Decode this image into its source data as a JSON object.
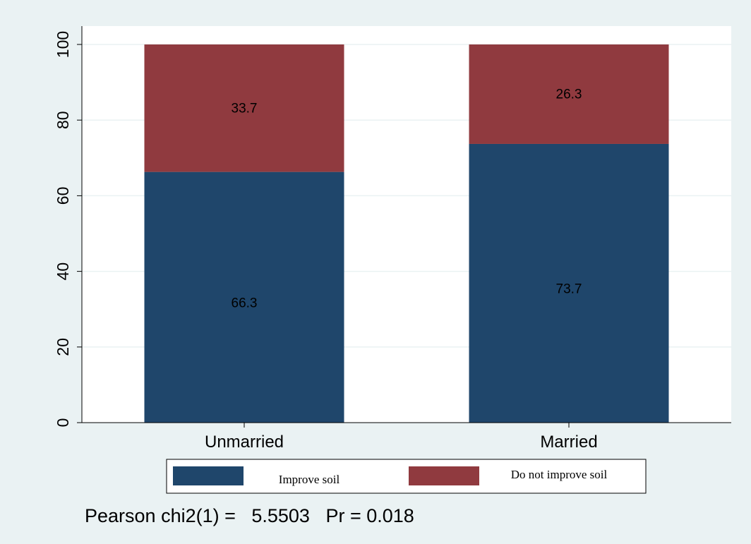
{
  "chart_data": {
    "type": "bar",
    "stacked": true,
    "categories": [
      "Unmarried",
      "Married"
    ],
    "series": [
      {
        "name": "Improve soil",
        "values": [
          66.3,
          73.7
        ],
        "color": "#1f466b"
      },
      {
        "name": "Do not improve soil",
        "values": [
          33.7,
          26.3
        ],
        "color": "#903a3f"
      }
    ],
    "data_labels": [
      [
        "66.3",
        "73.7"
      ],
      [
        "33.7",
        "26.3"
      ]
    ],
    "ylim": [
      0,
      100
    ],
    "yticks": [
      0,
      20,
      40,
      60,
      80,
      100
    ],
    "grid": true,
    "legend_position": "bottom",
    "note": "Pearson chi2(1) =   5.5503   Pr = 0.018",
    "colors": {
      "outer_background": "#eaf2f3",
      "plot_background": "#ffffff",
      "gridline": "#eaf2f3"
    }
  }
}
